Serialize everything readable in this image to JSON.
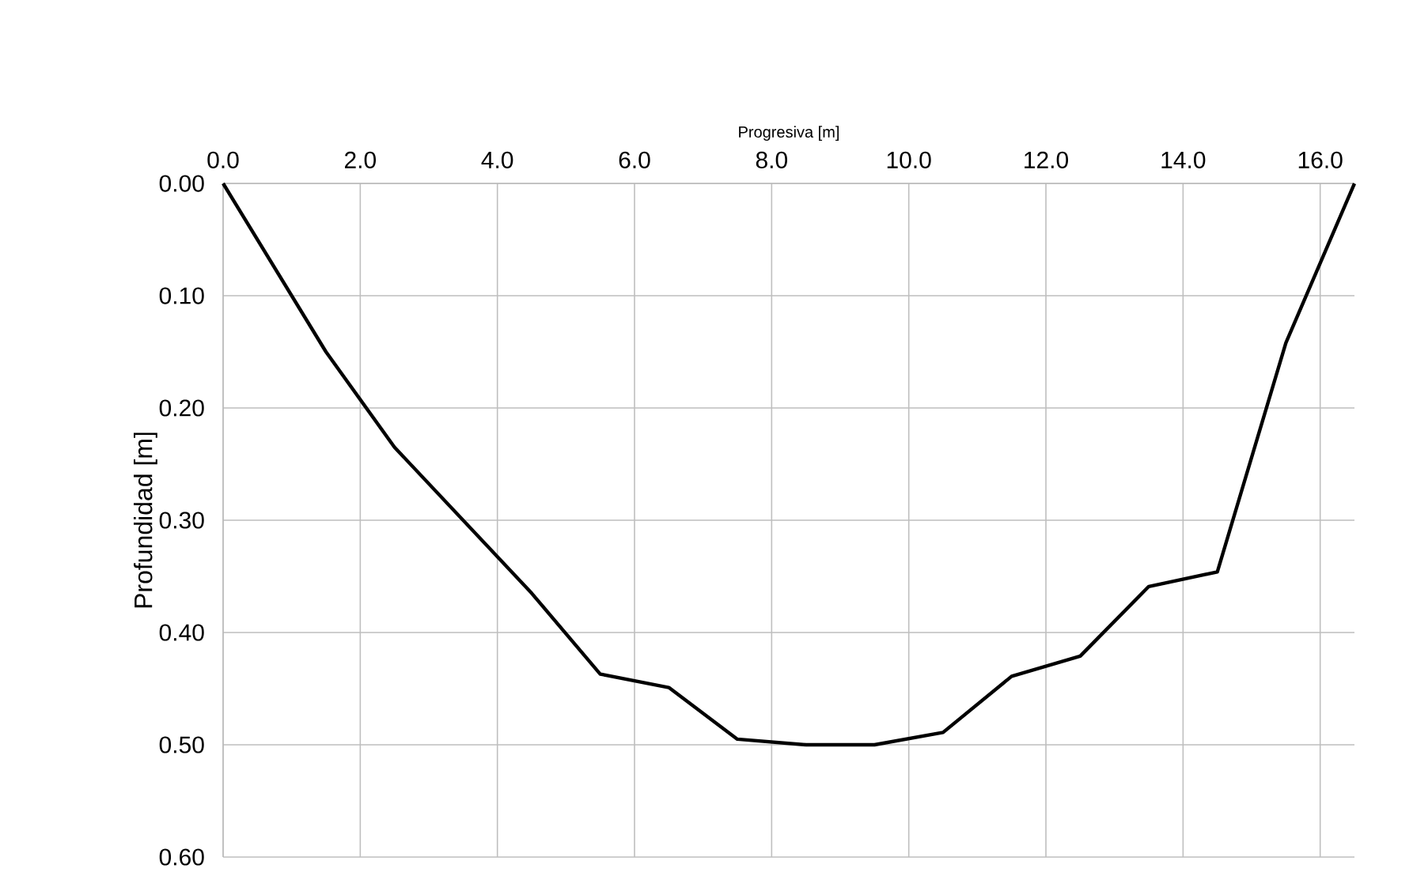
{
  "chart_data": {
    "type": "line",
    "xlabel": "Progresiva [m]",
    "ylabel": "Profundidad [m]",
    "x": [
      0,
      1.5,
      2.5,
      3.5,
      4.5,
      5.5,
      6.5,
      7.5,
      8.5,
      9.5,
      10.5,
      11.5,
      12.5,
      13.5,
      14.5,
      15.5,
      16.5
    ],
    "series": [
      {
        "color": "#000000",
        "values": [
          0,
          0.15,
          0.235,
          0.3,
          0.365,
          0.437,
          0.449,
          0.495,
          0.5,
          0.5,
          0.489,
          0.439,
          0.421,
          0.359,
          0.346,
          0.142,
          0
        ]
      }
    ],
    "xlim": [
      0,
      16.5
    ],
    "ylim": [
      0.6,
      0
    ],
    "xticks": [
      {
        "value": 0,
        "label": "0.0"
      },
      {
        "value": 2,
        "label": "2.0"
      },
      {
        "value": 4,
        "label": "4.0"
      },
      {
        "value": 6,
        "label": "6.0"
      },
      {
        "value": 8,
        "label": "8.0"
      },
      {
        "value": 10,
        "label": "10.0"
      },
      {
        "value": 12,
        "label": "12.0"
      },
      {
        "value": 14,
        "label": "14.0"
      },
      {
        "value": 16,
        "label": "16.0"
      }
    ],
    "yticks": [
      {
        "value": 0,
        "label": "0.00"
      },
      {
        "value": 0.1,
        "label": "0.10"
      },
      {
        "value": 0.2,
        "label": "0.20"
      },
      {
        "value": 0.3,
        "label": "0.30"
      },
      {
        "value": 0.4,
        "label": "0.40"
      },
      {
        "value": 0.5,
        "label": "0.50"
      },
      {
        "value": 0.6,
        "label": "0.60"
      }
    ],
    "grid": true,
    "marker": "none",
    "line_style": "solid"
  }
}
